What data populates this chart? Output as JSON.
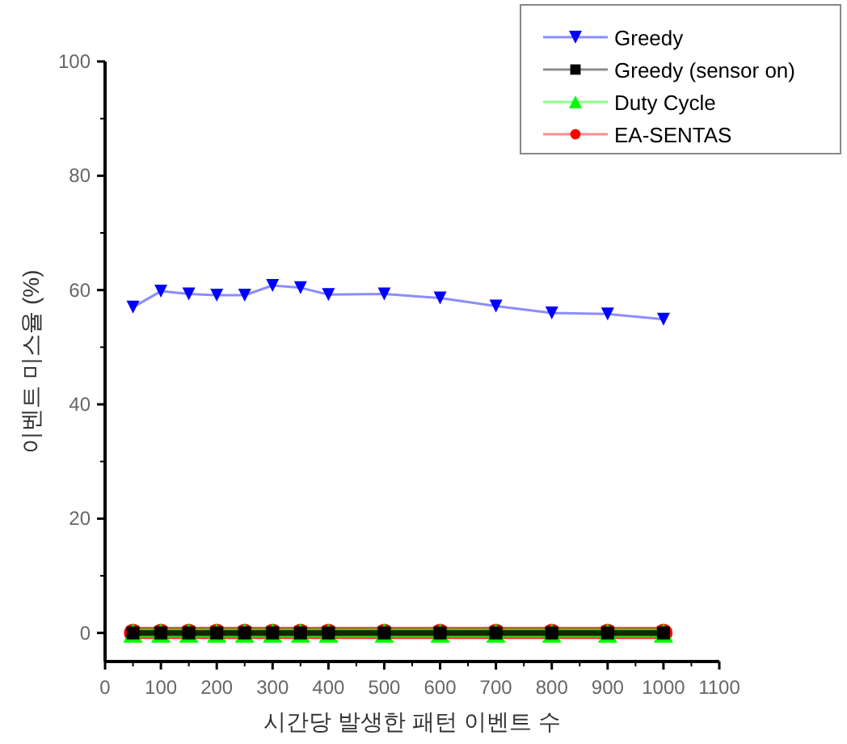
{
  "chart_data": {
    "type": "line",
    "xlabel": "시간당 발생한 패턴 이벤트 수",
    "ylabel": "이벤트 미스율 (%)",
    "xlim": [
      0,
      1100
    ],
    "xticks": [
      0,
      100,
      200,
      300,
      400,
      500,
      600,
      700,
      800,
      900,
      1000,
      1100
    ],
    "ylim": [
      -5,
      100
    ],
    "yticks": [
      0,
      20,
      40,
      60,
      80,
      100
    ],
    "x": [
      50,
      100,
      150,
      200,
      250,
      300,
      350,
      400,
      500,
      600,
      700,
      800,
      900,
      1000
    ],
    "grid": false,
    "legend": "top right",
    "series": [
      {
        "name": "Greedy",
        "color": "#0000ff",
        "marker": "triangle-down",
        "values": [
          57.0,
          59.8,
          59.3,
          59.1,
          59.1,
          60.8,
          60.4,
          59.2,
          59.3,
          58.6,
          57.2,
          56.0,
          55.8,
          54.9
        ]
      },
      {
        "name": "Greedy (sensor on)",
        "color": "#000000",
        "marker": "square",
        "values": [
          0,
          0,
          0,
          0,
          0,
          0,
          0,
          0,
          0,
          0,
          0,
          0,
          0,
          0
        ]
      },
      {
        "name": "Duty Cycle",
        "color": "#00ff00",
        "marker": "triangle",
        "values": [
          0,
          0,
          0,
          0,
          0,
          0,
          0,
          0,
          0,
          0,
          0,
          0,
          0,
          0
        ]
      },
      {
        "name": "EA-SENTAS",
        "color": "#ff0000",
        "marker": "circle",
        "values": [
          0,
          0,
          0,
          0,
          0,
          0,
          0,
          0,
          0,
          0,
          0,
          0,
          0,
          0
        ]
      }
    ]
  }
}
